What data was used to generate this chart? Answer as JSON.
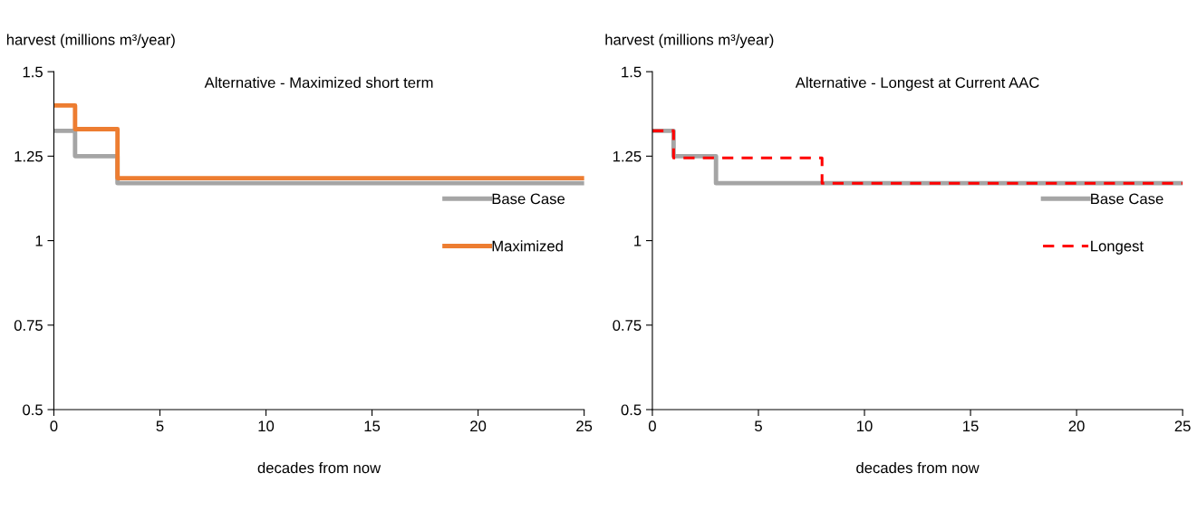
{
  "chart_data": [
    {
      "type": "step",
      "title": "Alternative - Maximized short term",
      "xlabel": "decades from now",
      "ylabel": "harvest (millions m³/year)",
      "x": [
        0,
        1,
        3,
        25
      ],
      "xlim": [
        0,
        25
      ],
      "xticks": [
        0,
        5,
        10,
        15,
        20,
        25
      ],
      "ylim": [
        0.5,
        1.5
      ],
      "yticks": [
        0.5,
        0.75,
        1,
        1.25,
        1.5
      ],
      "grid": false,
      "legend": "right",
      "series": [
        {
          "name": "Base Case",
          "color": "#a5a5a5",
          "values": [
            1.325,
            1.25,
            1.17,
            1.17
          ]
        },
        {
          "name": "Maximized",
          "color": "#ed7d31",
          "values": [
            1.4,
            1.33,
            1.185,
            1.185
          ]
        }
      ]
    },
    {
      "type": "step",
      "title": "Alternative - Longest at Current AAC",
      "xlabel": "decades from now",
      "ylabel": "harvest (millions m³/year)",
      "x": [
        0,
        1,
        3,
        8,
        25
      ],
      "xlim": [
        0,
        25
      ],
      "xticks": [
        0,
        5,
        10,
        15,
        20,
        25
      ],
      "ylim": [
        0.5,
        1.5
      ],
      "yticks": [
        0.5,
        0.75,
        1,
        1.25,
        1.5
      ],
      "grid": false,
      "legend": "right",
      "series": [
        {
          "name": "Base Case",
          "color": "#a5a5a5",
          "values": [
            1.325,
            1.25,
            1.17,
            1.17,
            1.17
          ]
        },
        {
          "name": "Longest",
          "color": "#ff0000",
          "line_style": "dashed",
          "values": [
            1.325,
            1.245,
            1.245,
            1.17,
            1.17
          ]
        }
      ]
    }
  ]
}
